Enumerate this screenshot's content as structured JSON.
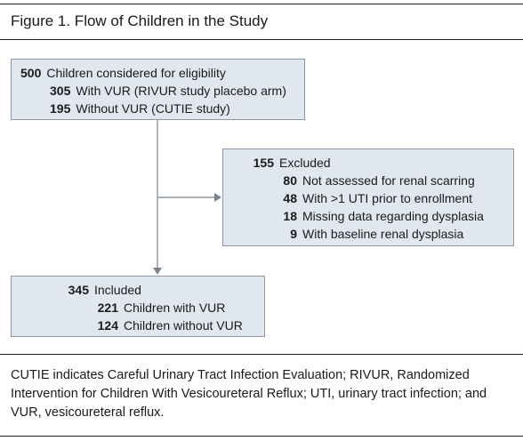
{
  "figure": {
    "title": "Figure 1. Flow of Children in the Study"
  },
  "boxes": {
    "considered": {
      "lines": [
        {
          "num": "500",
          "label": "Children considered for eligibility"
        },
        {
          "num": "305",
          "label": "With VUR (RIVUR study placebo arm)"
        },
        {
          "num": "195",
          "label": "Without VUR (CUTIE study)"
        }
      ]
    },
    "excluded": {
      "lines": [
        {
          "num": "155",
          "label": "Excluded"
        },
        {
          "num": "80",
          "label": "Not assessed for renal scarring"
        },
        {
          "num": "48",
          "label": "With >1 UTI prior to enrollment"
        },
        {
          "num": "18",
          "label": "Missing data regarding dysplasia"
        },
        {
          "num": "9",
          "label": "With baseline renal dysplasia"
        }
      ]
    },
    "included": {
      "lines": [
        {
          "num": "345",
          "label": "Included"
        },
        {
          "num": "221",
          "label": "Children with VUR"
        },
        {
          "num": "124",
          "label": "Children without VUR"
        }
      ]
    }
  },
  "footnote": "CUTIE indicates Careful Urinary Tract Infection Evaluation; RIVUR, Randomized Intervention for Children With Vesicoureteral Reflux; UTI, urinary tract infection; and VUR, vesicoureteral reflux."
}
